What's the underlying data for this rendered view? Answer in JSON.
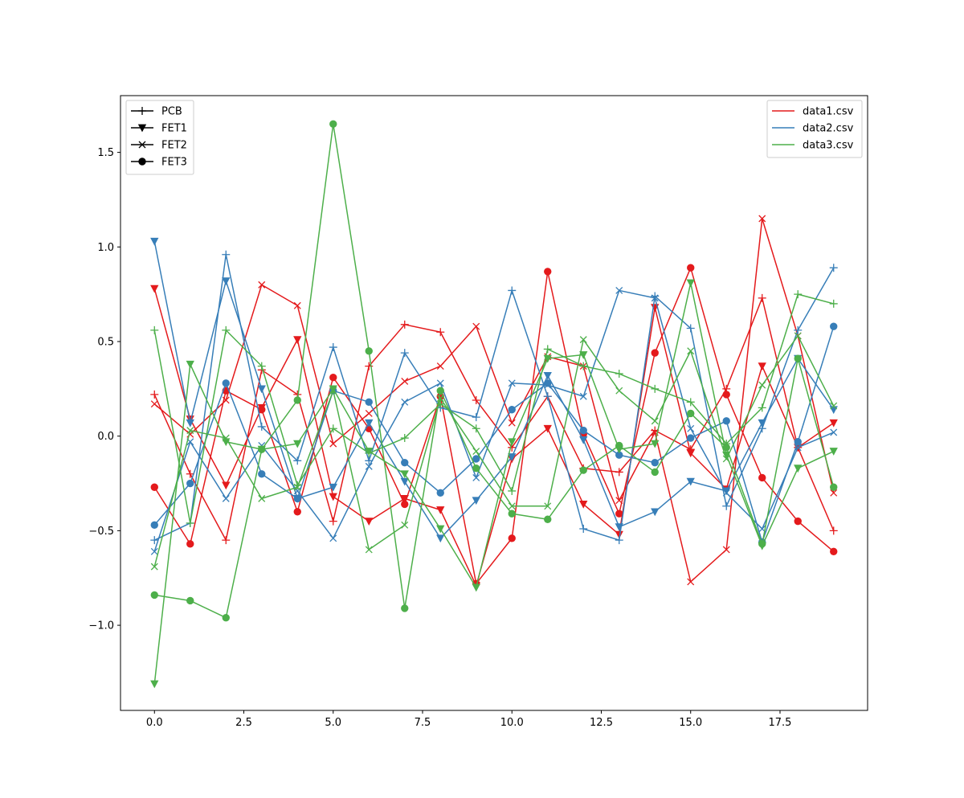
{
  "chart_data": {
    "type": "line",
    "title": "",
    "xlabel": "",
    "ylabel": "",
    "xlim": [
      -0.95,
      19.95
    ],
    "ylim": [
      -1.45,
      1.8
    ],
    "grid": false,
    "x": [
      0,
      1,
      2,
      3,
      4,
      5,
      6,
      7,
      8,
      9,
      10,
      11,
      12,
      13,
      14,
      15,
      16,
      17,
      18,
      19
    ],
    "xticks": [
      0.0,
      2.5,
      5.0,
      7.5,
      10.0,
      12.5,
      15.0,
      17.5
    ],
    "xtick_labels": [
      "0.0",
      "2.5",
      "5.0",
      "7.5",
      "10.0",
      "12.5",
      "15.0",
      "17.5"
    ],
    "yticks": [
      -1.0,
      -0.5,
      0.0,
      0.5,
      1.0,
      1.5
    ],
    "ytick_labels": [
      "−1.0",
      "−0.5",
      "0.0",
      "0.5",
      "1.0",
      "1.5"
    ],
    "legend_markers": {
      "placement": "top-left",
      "entries": [
        {
          "label": "PCB",
          "marker": "plus"
        },
        {
          "label": "FET1",
          "marker": "triangle-down"
        },
        {
          "label": "FET2",
          "marker": "x"
        },
        {
          "label": "FET3",
          "marker": "circle"
        }
      ]
    },
    "legend_files": {
      "placement": "top-right",
      "entries": [
        {
          "label": "data1.csv",
          "color": "#e41a1c"
        },
        {
          "label": "data2.csv",
          "color": "#377eb8"
        },
        {
          "label": "data3.csv",
          "color": "#4daf4a"
        }
      ]
    },
    "series": [
      {
        "file": "data1.csv",
        "marker": "plus",
        "color": "#e41a1c",
        "values": [
          0.22,
          -0.2,
          -0.55,
          0.35,
          0.22,
          -0.45,
          0.37,
          0.59,
          0.55,
          0.19,
          -0.06,
          0.21,
          -0.17,
          -0.19,
          0.03,
          -0.07,
          0.25,
          0.73,
          -0.06,
          -0.5
        ]
      },
      {
        "file": "data1.csv",
        "marker": "triangle-down",
        "color": "#e41a1c",
        "values": [
          0.78,
          0.09,
          -0.26,
          0.15,
          0.51,
          -0.32,
          -0.45,
          -0.33,
          -0.39,
          -0.79,
          -0.12,
          0.04,
          -0.36,
          -0.52,
          0.68,
          -0.09,
          -0.28,
          0.37,
          -0.06,
          0.07
        ]
      },
      {
        "file": "data1.csv",
        "marker": "x",
        "color": "#e41a1c",
        "values": [
          0.17,
          0.01,
          0.19,
          0.8,
          0.69,
          -0.04,
          0.12,
          0.29,
          0.37,
          0.58,
          0.07,
          0.42,
          0.37,
          -0.34,
          0.02,
          -0.77,
          -0.6,
          1.15,
          0.53,
          -0.3
        ]
      },
      {
        "file": "data1.csv",
        "marker": "circle",
        "color": "#e41a1c",
        "values": [
          -0.27,
          -0.57,
          0.24,
          0.14,
          -0.4,
          0.31,
          0.04,
          -0.36,
          0.21,
          -0.78,
          -0.54,
          0.87,
          0.01,
          -0.41,
          0.44,
          0.89,
          0.22,
          -0.22,
          -0.45,
          -0.61
        ]
      },
      {
        "file": "data2.csv",
        "marker": "plus",
        "color": "#377eb8",
        "values": [
          -0.55,
          -0.46,
          0.96,
          0.05,
          -0.13,
          0.47,
          -0.13,
          0.44,
          0.15,
          0.1,
          0.77,
          0.21,
          -0.49,
          -0.55,
          0.74,
          0.57,
          -0.37,
          0.04,
          0.56,
          0.89
        ]
      },
      {
        "file": "data2.csv",
        "marker": "triangle-down",
        "color": "#377eb8",
        "values": [
          1.03,
          0.07,
          0.82,
          0.25,
          -0.33,
          -0.27,
          0.07,
          -0.24,
          -0.54,
          -0.34,
          -0.11,
          0.32,
          -0.02,
          -0.48,
          -0.4,
          -0.24,
          -0.29,
          0.07,
          0.41,
          0.14
        ]
      },
      {
        "file": "data2.csv",
        "marker": "x",
        "color": "#377eb8",
        "values": [
          -0.61,
          -0.03,
          -0.33,
          -0.05,
          -0.29,
          -0.54,
          -0.16,
          0.18,
          0.28,
          -0.22,
          0.28,
          0.27,
          0.21,
          0.77,
          0.73,
          0.04,
          -0.3,
          -0.49,
          -0.06,
          0.02
        ]
      },
      {
        "file": "data2.csv",
        "marker": "circle",
        "color": "#377eb8",
        "values": [
          -0.47,
          -0.25,
          0.28,
          -0.2,
          -0.33,
          0.24,
          0.18,
          -0.14,
          -0.3,
          -0.12,
          0.14,
          0.28,
          0.03,
          -0.1,
          -0.14,
          -0.01,
          0.08,
          -0.56,
          -0.03,
          0.58
        ]
      },
      {
        "file": "data3.csv",
        "marker": "plus",
        "color": "#4daf4a",
        "values": [
          0.56,
          -0.46,
          0.56,
          0.37,
          -0.26,
          0.04,
          -0.09,
          -0.01,
          0.17,
          0.04,
          -0.29,
          0.46,
          0.37,
          0.33,
          0.25,
          0.18,
          -0.04,
          0.15,
          0.75,
          0.7
        ]
      },
      {
        "file": "data3.csv",
        "marker": "triangle-down",
        "color": "#4daf4a",
        "values": [
          -1.31,
          0.38,
          -0.03,
          -0.07,
          -0.04,
          0.25,
          -0.08,
          -0.2,
          -0.49,
          -0.8,
          -0.03,
          0.41,
          0.43,
          -0.07,
          -0.04,
          0.81,
          -0.1,
          -0.58,
          -0.17,
          -0.08
        ]
      },
      {
        "file": "data3.csv",
        "marker": "x",
        "color": "#4daf4a",
        "values": [
          -0.69,
          0.03,
          -0.01,
          -0.33,
          -0.27,
          0.24,
          -0.6,
          -0.47,
          0.2,
          -0.08,
          -0.37,
          -0.37,
          0.51,
          0.24,
          0.08,
          0.45,
          -0.12,
          0.27,
          0.53,
          0.16
        ]
      },
      {
        "file": "data3.csv",
        "marker": "circle",
        "color": "#4daf4a",
        "values": [
          -0.84,
          -0.87,
          -0.96,
          -0.07,
          0.19,
          1.65,
          0.45,
          -0.91,
          0.24,
          -0.17,
          -0.41,
          -0.44,
          -0.18,
          -0.05,
          -0.19,
          0.12,
          -0.06,
          -0.57,
          0.41,
          -0.27
        ]
      }
    ]
  }
}
